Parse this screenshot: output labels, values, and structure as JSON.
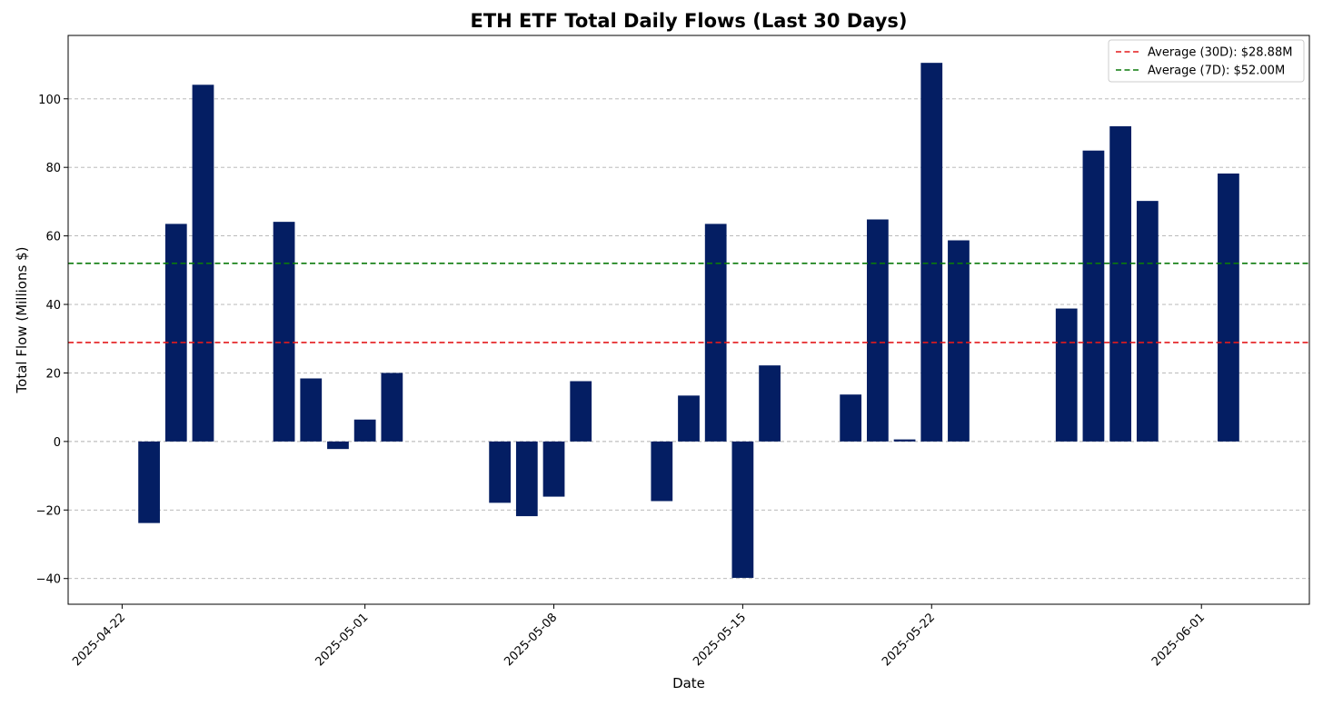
{
  "chart_data": {
    "type": "bar",
    "title": "ETH ETF Total Daily Flows (Last 30 Days)",
    "xlabel": "Date",
    "ylabel": "Total Flow (Millions $)",
    "ylim": [
      -47.5,
      118.5
    ],
    "xlim": [
      "2025-04-20",
      "2025-06-05"
    ],
    "y_ticks": [
      -40,
      -20,
      0,
      20,
      40,
      60,
      80,
      100
    ],
    "y_tick_labels": [
      "−40",
      "−20",
      "0",
      "20",
      "40",
      "60",
      "80",
      "100"
    ],
    "x_ticks": [
      "2025-04-22",
      "2025-05-01",
      "2025-05-08",
      "2025-05-15",
      "2025-05-22",
      "2025-06-01"
    ],
    "grid": "horizontal dashed",
    "legend_position": "top-right",
    "bar_color": "#041e63",
    "dates": [
      "2025-04-23",
      "2025-04-24",
      "2025-04-25",
      "2025-04-28",
      "2025-04-29",
      "2025-04-30",
      "2025-05-01",
      "2025-05-02",
      "2025-05-06",
      "2025-05-07",
      "2025-05-08",
      "2025-05-09",
      "2025-05-12",
      "2025-05-13",
      "2025-05-14",
      "2025-05-15",
      "2025-05-16",
      "2025-05-19",
      "2025-05-20",
      "2025-05-21",
      "2025-05-22",
      "2025-05-23",
      "2025-05-27",
      "2025-05-28",
      "2025-05-29",
      "2025-05-30",
      "2025-06-02"
    ],
    "values": [
      -23.8,
      63.5,
      104.1,
      64.1,
      18.4,
      -2.2,
      6.4,
      20.0,
      -17.9,
      -21.8,
      -16.1,
      17.6,
      -17.4,
      13.4,
      63.5,
      -39.8,
      22.2,
      13.7,
      64.8,
      0.6,
      110.5,
      58.7,
      38.8,
      84.9,
      92.0,
      70.2,
      78.2
    ],
    "reference_lines": [
      {
        "name": "Average (30D): $28.88M",
        "value": 28.88,
        "color": "#e41a1c"
      },
      {
        "name": "Average (7D): $52.00M",
        "value": 52.0,
        "color": "#0b7a0b"
      }
    ]
  }
}
